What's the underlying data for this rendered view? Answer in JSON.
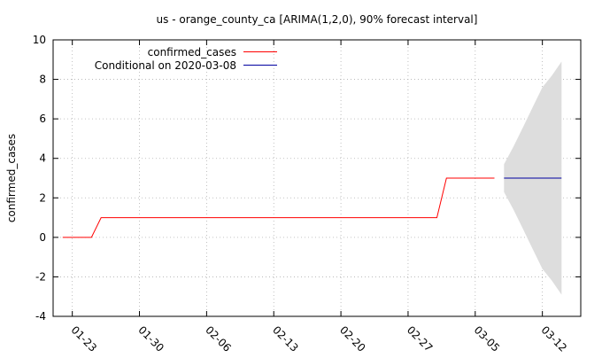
{
  "chart_data": {
    "type": "line",
    "title": "us - orange_county_ca [ARIMA(1,2,0), 90% forecast interval]",
    "xlabel": "",
    "ylabel": "confirmed_cases",
    "ylim": [
      -4,
      10
    ],
    "yticks": [
      -4,
      -2,
      0,
      2,
      4,
      6,
      8,
      10
    ],
    "xlim": [
      "2020-01-21",
      "2020-03-16"
    ],
    "xticks": [
      {
        "date": "2020-01-23",
        "label": "01-23"
      },
      {
        "date": "2020-01-30",
        "label": "01-30"
      },
      {
        "date": "2020-02-06",
        "label": "02-06"
      },
      {
        "date": "2020-02-13",
        "label": "02-13"
      },
      {
        "date": "2020-02-20",
        "label": "02-20"
      },
      {
        "date": "2020-02-27",
        "label": "02-27"
      },
      {
        "date": "2020-03-05",
        "label": "03-05"
      },
      {
        "date": "2020-03-12",
        "label": "03-12"
      }
    ],
    "grid": true,
    "legend_position": "top-left",
    "series": [
      {
        "name": "confirmed_cases",
        "color": "#ff0000",
        "points": [
          [
            "2020-01-22",
            0
          ],
          [
            "2020-01-23",
            0
          ],
          [
            "2020-01-24",
            0
          ],
          [
            "2020-01-25",
            0
          ],
          [
            "2020-01-26",
            1
          ],
          [
            "2020-01-27",
            1
          ],
          [
            "2020-01-28",
            1
          ],
          [
            "2020-01-29",
            1
          ],
          [
            "2020-01-30",
            1
          ],
          [
            "2020-01-31",
            1
          ],
          [
            "2020-02-01",
            1
          ],
          [
            "2020-02-02",
            1
          ],
          [
            "2020-02-03",
            1
          ],
          [
            "2020-02-04",
            1
          ],
          [
            "2020-02-05",
            1
          ],
          [
            "2020-02-06",
            1
          ],
          [
            "2020-02-07",
            1
          ],
          [
            "2020-02-08",
            1
          ],
          [
            "2020-02-09",
            1
          ],
          [
            "2020-02-10",
            1
          ],
          [
            "2020-02-11",
            1
          ],
          [
            "2020-02-12",
            1
          ],
          [
            "2020-02-13",
            1
          ],
          [
            "2020-02-14",
            1
          ],
          [
            "2020-02-15",
            1
          ],
          [
            "2020-02-16",
            1
          ],
          [
            "2020-02-17",
            1
          ],
          [
            "2020-02-18",
            1
          ],
          [
            "2020-02-19",
            1
          ],
          [
            "2020-02-20",
            1
          ],
          [
            "2020-02-21",
            1
          ],
          [
            "2020-02-22",
            1
          ],
          [
            "2020-02-23",
            1
          ],
          [
            "2020-02-24",
            1
          ],
          [
            "2020-02-25",
            1
          ],
          [
            "2020-02-26",
            1
          ],
          [
            "2020-02-27",
            1
          ],
          [
            "2020-02-28",
            1
          ],
          [
            "2020-02-29",
            1
          ],
          [
            "2020-03-01",
            1
          ],
          [
            "2020-03-02",
            3
          ],
          [
            "2020-03-03",
            3
          ],
          [
            "2020-03-04",
            3
          ],
          [
            "2020-03-05",
            3
          ],
          [
            "2020-03-06",
            3
          ],
          [
            "2020-03-07",
            3
          ]
        ]
      },
      {
        "name": "Conditional on 2020-03-08",
        "color": "#0000a0",
        "points": [
          [
            "2020-03-08",
            3
          ],
          [
            "2020-03-09",
            3
          ],
          [
            "2020-03-10",
            3
          ],
          [
            "2020-03-11",
            3
          ],
          [
            "2020-03-12",
            3
          ],
          [
            "2020-03-13",
            3
          ],
          [
            "2020-03-14",
            3
          ]
        ]
      }
    ],
    "forecast_interval": {
      "color": "#dddddd",
      "points": [
        [
          "2020-03-08",
          2.3,
          3.7
        ],
        [
          "2020-03-09",
          1.4,
          4.6
        ],
        [
          "2020-03-10",
          0.4,
          5.6
        ],
        [
          "2020-03-11",
          -0.6,
          6.6
        ],
        [
          "2020-03-12",
          -1.6,
          7.6
        ],
        [
          "2020-03-13",
          -2.2,
          8.2
        ],
        [
          "2020-03-14",
          -2.9,
          8.9
        ]
      ]
    }
  }
}
